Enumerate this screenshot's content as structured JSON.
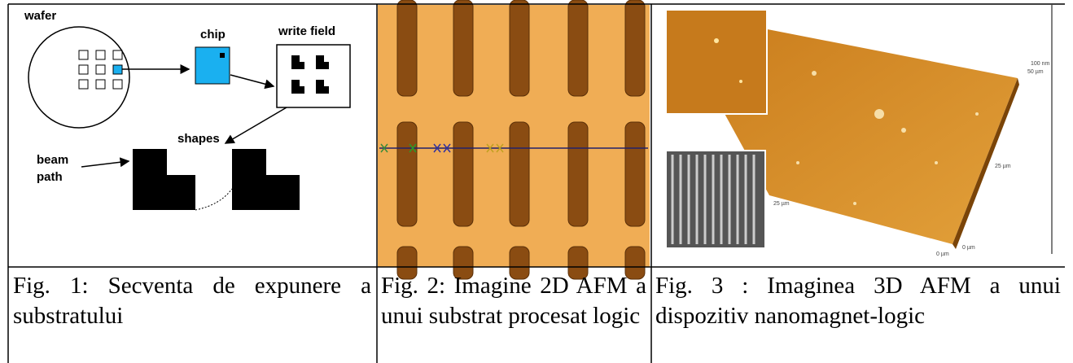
{
  "figures": [
    {
      "labels": [
        "wafer",
        "chip",
        "write field",
        "shapes",
        "beam",
        "path"
      ],
      "caption": "Fig. 1: Secventa de expunere a substratului"
    },
    {
      "caption": "Fig. 2: Imagine 2D AFM a unui substrat procesat logic"
    },
    {
      "labels": [
        "100 nm",
        "50 µm",
        "25 µm",
        "25 µm",
        "0 µm",
        "0 µm"
      ],
      "caption": "Fig. 3 : Imaginea 3D AFM a unui dispozitiv nanomagnet-logic"
    }
  ]
}
